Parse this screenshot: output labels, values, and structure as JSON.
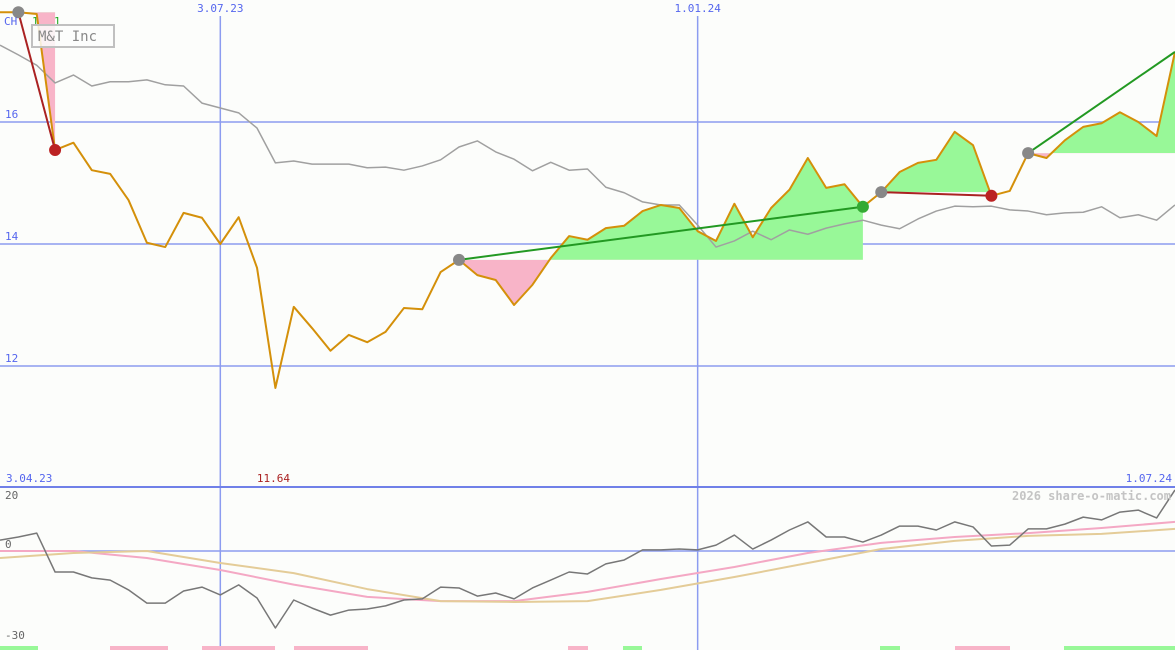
{
  "title": "M&T Inc",
  "corner_label": "CH",
  "corner_marks": [
    "1",
    "1"
  ],
  "watermark": "2026 share-o-matic.com",
  "colors": {
    "price": "#d4900a",
    "compare": "#a0a0a0",
    "grid": "#8c9cf0",
    "gain_fill": "#98f898",
    "loss_fill": "#f8b4c8",
    "win_line": "#229922",
    "loss_line": "#aa2222",
    "osc": "#777777",
    "osc_fast": "#f4a8c4",
    "osc_slow": "#e4cc98"
  },
  "chart_data": [
    {
      "type": "line",
      "title": "M&T Inc",
      "ylim": [
        10,
        18
      ],
      "y_ticks": [
        16,
        14,
        12
      ],
      "x_ticks": [
        {
          "index": 0,
          "label": "3.04.23"
        },
        {
          "index": 12,
          "label": "3.07.23"
        },
        {
          "index": 38,
          "label": "1.01.24"
        },
        {
          "index": 64,
          "label": "1.07.24"
        }
      ],
      "min_label": {
        "index": 15,
        "label": "11.64"
      },
      "grid": true,
      "series": [
        {
          "key": "price",
          "values": [
            17.8,
            17.8,
            17.77,
            15.54,
            15.66,
            15.21,
            15.15,
            14.72,
            14.02,
            13.95,
            14.51,
            14.43,
            14.0,
            14.44,
            13.61,
            11.64,
            12.97,
            12.62,
            12.25,
            12.51,
            12.39,
            12.56,
            12.95,
            12.93,
            13.54,
            13.74,
            13.49,
            13.41,
            13.0,
            13.33,
            13.77,
            14.13,
            14.07,
            14.26,
            14.3,
            14.54,
            14.64,
            14.59,
            14.21,
            14.05,
            14.66,
            14.11,
            14.59,
            14.89,
            15.41,
            14.92,
            14.98,
            14.61,
            14.85,
            15.18,
            15.33,
            15.38,
            15.84,
            15.62,
            14.79,
            14.87,
            15.49,
            15.41,
            15.7,
            15.92,
            15.98,
            16.16,
            16.0,
            15.77,
            17.15
          ]
        },
        {
          "key": "compare",
          "values": [
            17.26,
            17.1,
            16.93,
            16.64,
            16.77,
            16.59,
            16.66,
            16.66,
            16.69,
            16.61,
            16.59,
            16.31,
            16.23,
            16.15,
            15.9,
            15.33,
            15.36,
            15.31,
            15.31,
            15.31,
            15.25,
            15.26,
            15.21,
            15.28,
            15.38,
            15.59,
            15.69,
            15.51,
            15.39,
            15.2,
            15.34,
            15.21,
            15.23,
            14.93,
            14.84,
            14.69,
            14.64,
            14.64,
            14.31,
            13.95,
            14.05,
            14.21,
            14.07,
            14.23,
            14.16,
            14.26,
            14.33,
            14.39,
            14.31,
            14.25,
            14.41,
            14.54,
            14.62,
            14.61,
            14.62,
            14.56,
            14.54,
            14.48,
            14.51,
            14.52,
            14.61,
            14.43,
            14.48,
            14.39,
            14.64
          ]
        }
      ],
      "trades": [
        {
          "entry": 1,
          "exit": 3,
          "result": "loss"
        },
        {
          "entry": 25,
          "exit": 47,
          "result": "win"
        },
        {
          "entry": 48,
          "exit": 54,
          "result": "loss"
        },
        {
          "entry": 56,
          "exit": 64,
          "result": "open-win"
        }
      ]
    },
    {
      "type": "line",
      "ylim": [
        -30,
        20
      ],
      "y_ticks": [
        {
          "value": 20,
          "label": "20"
        },
        {
          "value": 0,
          "label": "0"
        },
        {
          "value": -30,
          "label": "-30"
        }
      ],
      "series": [
        {
          "key": "osc",
          "values": [
            3.9,
            5,
            6.4,
            -7.5,
            -7.5,
            -9.6,
            -10.4,
            -13.9,
            -18.6,
            -18.6,
            -14.3,
            -12.9,
            -15.7,
            -12.1,
            -16.8,
            -27.5,
            -17.5,
            -20.4,
            -22.9,
            -21.1,
            -20.7,
            -19.6,
            -17.5,
            -17.1,
            -12.9,
            -13.2,
            -16.1,
            -15,
            -17.1,
            -13.2,
            -10.4,
            -7.5,
            -8.2,
            -4.6,
            -3.2,
            0.4,
            0.4,
            0.7,
            0.4,
            2.1,
            5.7,
            0.7,
            3.9,
            7.5,
            10.4,
            5,
            5,
            3.2,
            5.7,
            8.9,
            8.9,
            7.5,
            10.4,
            8.6,
            1.8,
            2.1,
            7.9,
            7.9,
            9.6,
            12.1,
            11.1,
            13.9,
            14.6,
            11.8,
            21.8
          ]
        },
        {
          "key": "osc_fast",
          "step": 4,
          "values": [
            0,
            0,
            -2.5,
            -6.8,
            -12,
            -16.4,
            -17.9,
            -17.9,
            -14.6,
            -10,
            -5.7,
            -0.7,
            2.9,
            5,
            6.4,
            8.2,
            10.4
          ]
        },
        {
          "key": "osc_slow",
          "step": 4,
          "values": [
            -2.5,
            -0.7,
            0,
            -4.3,
            -7.9,
            -13.6,
            -17.9,
            -18.2,
            -17.9,
            -13.9,
            -9.3,
            -4.3,
            0.7,
            3.6,
            5.4,
            6.1,
            7.9
          ]
        }
      ]
    }
  ]
}
